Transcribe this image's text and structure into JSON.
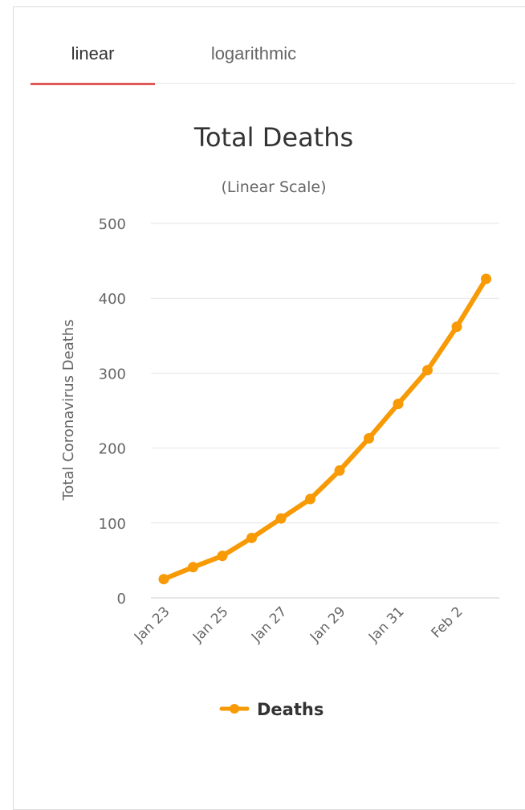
{
  "tabs": [
    {
      "label": "linear",
      "active": true
    },
    {
      "label": "logarithmic",
      "active": false
    }
  ],
  "colors": {
    "series": "#f79a05",
    "tab_underline": "#e05a5a",
    "grid": "#e6e6e6",
    "axis_text": "#666666",
    "title_text": "#333333"
  },
  "chart_data": {
    "type": "line",
    "title": "Total Deaths",
    "subtitle": "(Linear Scale)",
    "ylabel": "Total Coronavirus Deaths",
    "xlabel": "",
    "ylim": [
      0,
      500
    ],
    "yticks": [
      0,
      100,
      200,
      300,
      400,
      500
    ],
    "x": [
      "Jan 23",
      "Jan 24",
      "Jan 25",
      "Jan 26",
      "Jan 27",
      "Jan 28",
      "Jan 29",
      "Jan 30",
      "Jan 31",
      "Feb 1",
      "Feb 2",
      "Feb 3"
    ],
    "xtick_labels": [
      "Jan 23",
      "Jan 25",
      "Jan 27",
      "Jan 29",
      "Jan 31",
      "Feb 2"
    ],
    "series": [
      {
        "name": "Deaths",
        "values": [
          25,
          41,
          56,
          80,
          106,
          132,
          170,
          213,
          259,
          304,
          362,
          426
        ]
      }
    ],
    "grid": true,
    "legend": "bottom-center"
  }
}
